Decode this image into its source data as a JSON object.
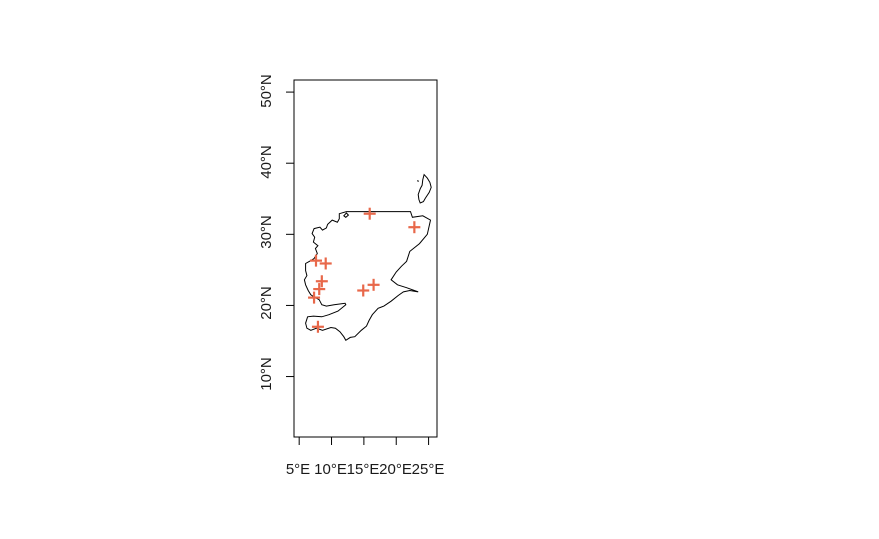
{
  "chart_data": {
    "type": "scatter",
    "x_ticks": [
      5,
      10,
      15,
      20,
      25
    ],
    "x_tick_labels": [
      "5°E",
      "10°E",
      "15°E",
      "20°E",
      "25°E"
    ],
    "y_ticks": [
      10,
      20,
      30,
      40,
      50
    ],
    "y_tick_labels": [
      "10°N",
      "20°N",
      "30°N",
      "40°N",
      "50°N"
    ],
    "xlim": [
      4.2,
      26.3
    ],
    "ylim": [
      1.5,
      51.7
    ],
    "marker": "plus",
    "marker_color": "#e8684a",
    "outline_color": "#000000",
    "points": [
      {
        "x": 15.9,
        "y": 32.9
      },
      {
        "x": 22.8,
        "y": 31.0
      },
      {
        "x": 7.6,
        "y": 26.3
      },
      {
        "x": 9.1,
        "y": 25.9
      },
      {
        "x": 8.5,
        "y": 23.4
      },
      {
        "x": 8.1,
        "y": 22.3
      },
      {
        "x": 7.3,
        "y": 21.1
      },
      {
        "x": 16.5,
        "y": 22.9
      },
      {
        "x": 14.9,
        "y": 22.1
      },
      {
        "x": 7.9,
        "y": 17.0
      }
    ],
    "outline": [
      [
        12.3,
        33.2
      ],
      [
        22.2,
        33.2
      ],
      [
        22.5,
        32.4
      ],
      [
        24.1,
        32.6
      ],
      [
        25.3,
        32.0
      ],
      [
        24.8,
        30.0
      ],
      [
        23.6,
        28.7
      ],
      [
        22.1,
        27.6
      ],
      [
        21.6,
        26.2
      ],
      [
        20.8,
        25.5
      ],
      [
        20.0,
        24.7
      ],
      [
        19.2,
        23.6
      ],
      [
        20.2,
        22.9
      ],
      [
        21.6,
        22.5
      ],
      [
        23.4,
        21.9
      ],
      [
        22.1,
        22.1
      ],
      [
        21.1,
        21.9
      ],
      [
        20.3,
        21.4
      ],
      [
        19.2,
        20.6
      ],
      [
        18.1,
        19.9
      ],
      [
        17.2,
        19.6
      ],
      [
        16.3,
        18.7
      ],
      [
        15.8,
        17.9
      ],
      [
        15.4,
        17.1
      ],
      [
        14.6,
        16.5
      ],
      [
        13.6,
        15.6
      ],
      [
        12.9,
        15.5
      ],
      [
        12.2,
        15.1
      ],
      [
        11.9,
        15.6
      ],
      [
        11.3,
        16.3
      ],
      [
        10.6,
        16.8
      ],
      [
        9.9,
        16.9
      ],
      [
        8.6,
        16.5
      ],
      [
        7.7,
        16.8
      ],
      [
        6.8,
        16.5
      ],
      [
        6.2,
        16.8
      ],
      [
        6.0,
        17.5
      ],
      [
        6.3,
        18.4
      ],
      [
        7.2,
        18.5
      ],
      [
        8.5,
        18.4
      ],
      [
        9.6,
        18.7
      ],
      [
        11.0,
        19.2
      ],
      [
        12.2,
        20.1
      ],
      [
        12.1,
        20.3
      ],
      [
        10.4,
        20.1
      ],
      [
        9.2,
        19.9
      ],
      [
        8.5,
        20.1
      ],
      [
        8.1,
        20.8
      ],
      [
        7.3,
        21.2
      ],
      [
        6.8,
        21.5
      ],
      [
        6.4,
        22.1
      ],
      [
        6.0,
        22.9
      ],
      [
        5.8,
        23.6
      ],
      [
        6.2,
        24.2
      ],
      [
        6.0,
        24.9
      ],
      [
        6.0,
        25.9
      ],
      [
        6.6,
        26.2
      ],
      [
        7.3,
        26.6
      ],
      [
        7.8,
        27.3
      ],
      [
        7.5,
        28.0
      ],
      [
        7.9,
        28.4
      ],
      [
        7.2,
        28.9
      ],
      [
        7.4,
        29.6
      ],
      [
        7.0,
        30.1
      ],
      [
        7.3,
        30.8
      ],
      [
        8.2,
        31.0
      ],
      [
        8.6,
        30.6
      ],
      [
        9.2,
        30.9
      ],
      [
        9.4,
        31.4
      ],
      [
        10.1,
        32.0
      ],
      [
        10.9,
        31.7
      ],
      [
        11.2,
        32.2
      ],
      [
        11.2,
        32.9
      ],
      [
        12.3,
        33.2
      ]
    ],
    "north_islands": [
      [
        [
          23.7,
          36.4
        ],
        [
          24.0,
          36.9
        ],
        [
          24.1,
          37.7
        ],
        [
          24.3,
          38.4
        ],
        [
          24.8,
          37.9
        ],
        [
          25.2,
          37.3
        ],
        [
          25.4,
          36.6
        ],
        [
          25.1,
          35.9
        ],
        [
          24.5,
          35.1
        ],
        [
          24.2,
          34.6
        ],
        [
          23.7,
          34.4
        ],
        [
          23.5,
          34.9
        ],
        [
          23.4,
          35.6
        ],
        [
          23.7,
          36.4
        ]
      ],
      [
        [
          23.3,
          37.6
        ],
        [
          23.4,
          37.4
        ],
        [
          23.4,
          37.5
        ],
        [
          23.3,
          37.6
        ]
      ],
      [
        [
          11.9,
          32.6
        ],
        [
          12.3,
          33.0
        ],
        [
          12.6,
          32.7
        ],
        [
          12.2,
          32.4
        ],
        [
          11.9,
          32.6
        ]
      ]
    ]
  }
}
